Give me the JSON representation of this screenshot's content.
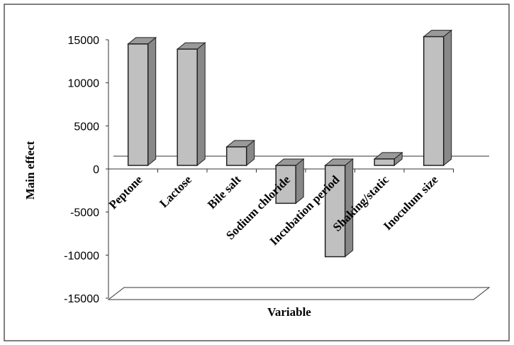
{
  "chart_data": {
    "type": "bar",
    "title": "",
    "xlabel": "Variable",
    "ylabel": "Main effect",
    "ylim": [
      -15000,
      15000
    ],
    "yticks": [
      15000,
      10000,
      5000,
      0,
      -5000,
      -10000,
      -15000
    ],
    "categories": [
      "Peptone",
      "Lactose",
      "Bile salt",
      "Sodium chloride",
      "Incubation period",
      "Shaking/static",
      "Inoculum size"
    ],
    "values": [
      14100,
      13500,
      2150,
      -4400,
      -10600,
      750,
      14950
    ],
    "bar_color": "#c0c0c0",
    "grid": false,
    "legend": "none"
  }
}
